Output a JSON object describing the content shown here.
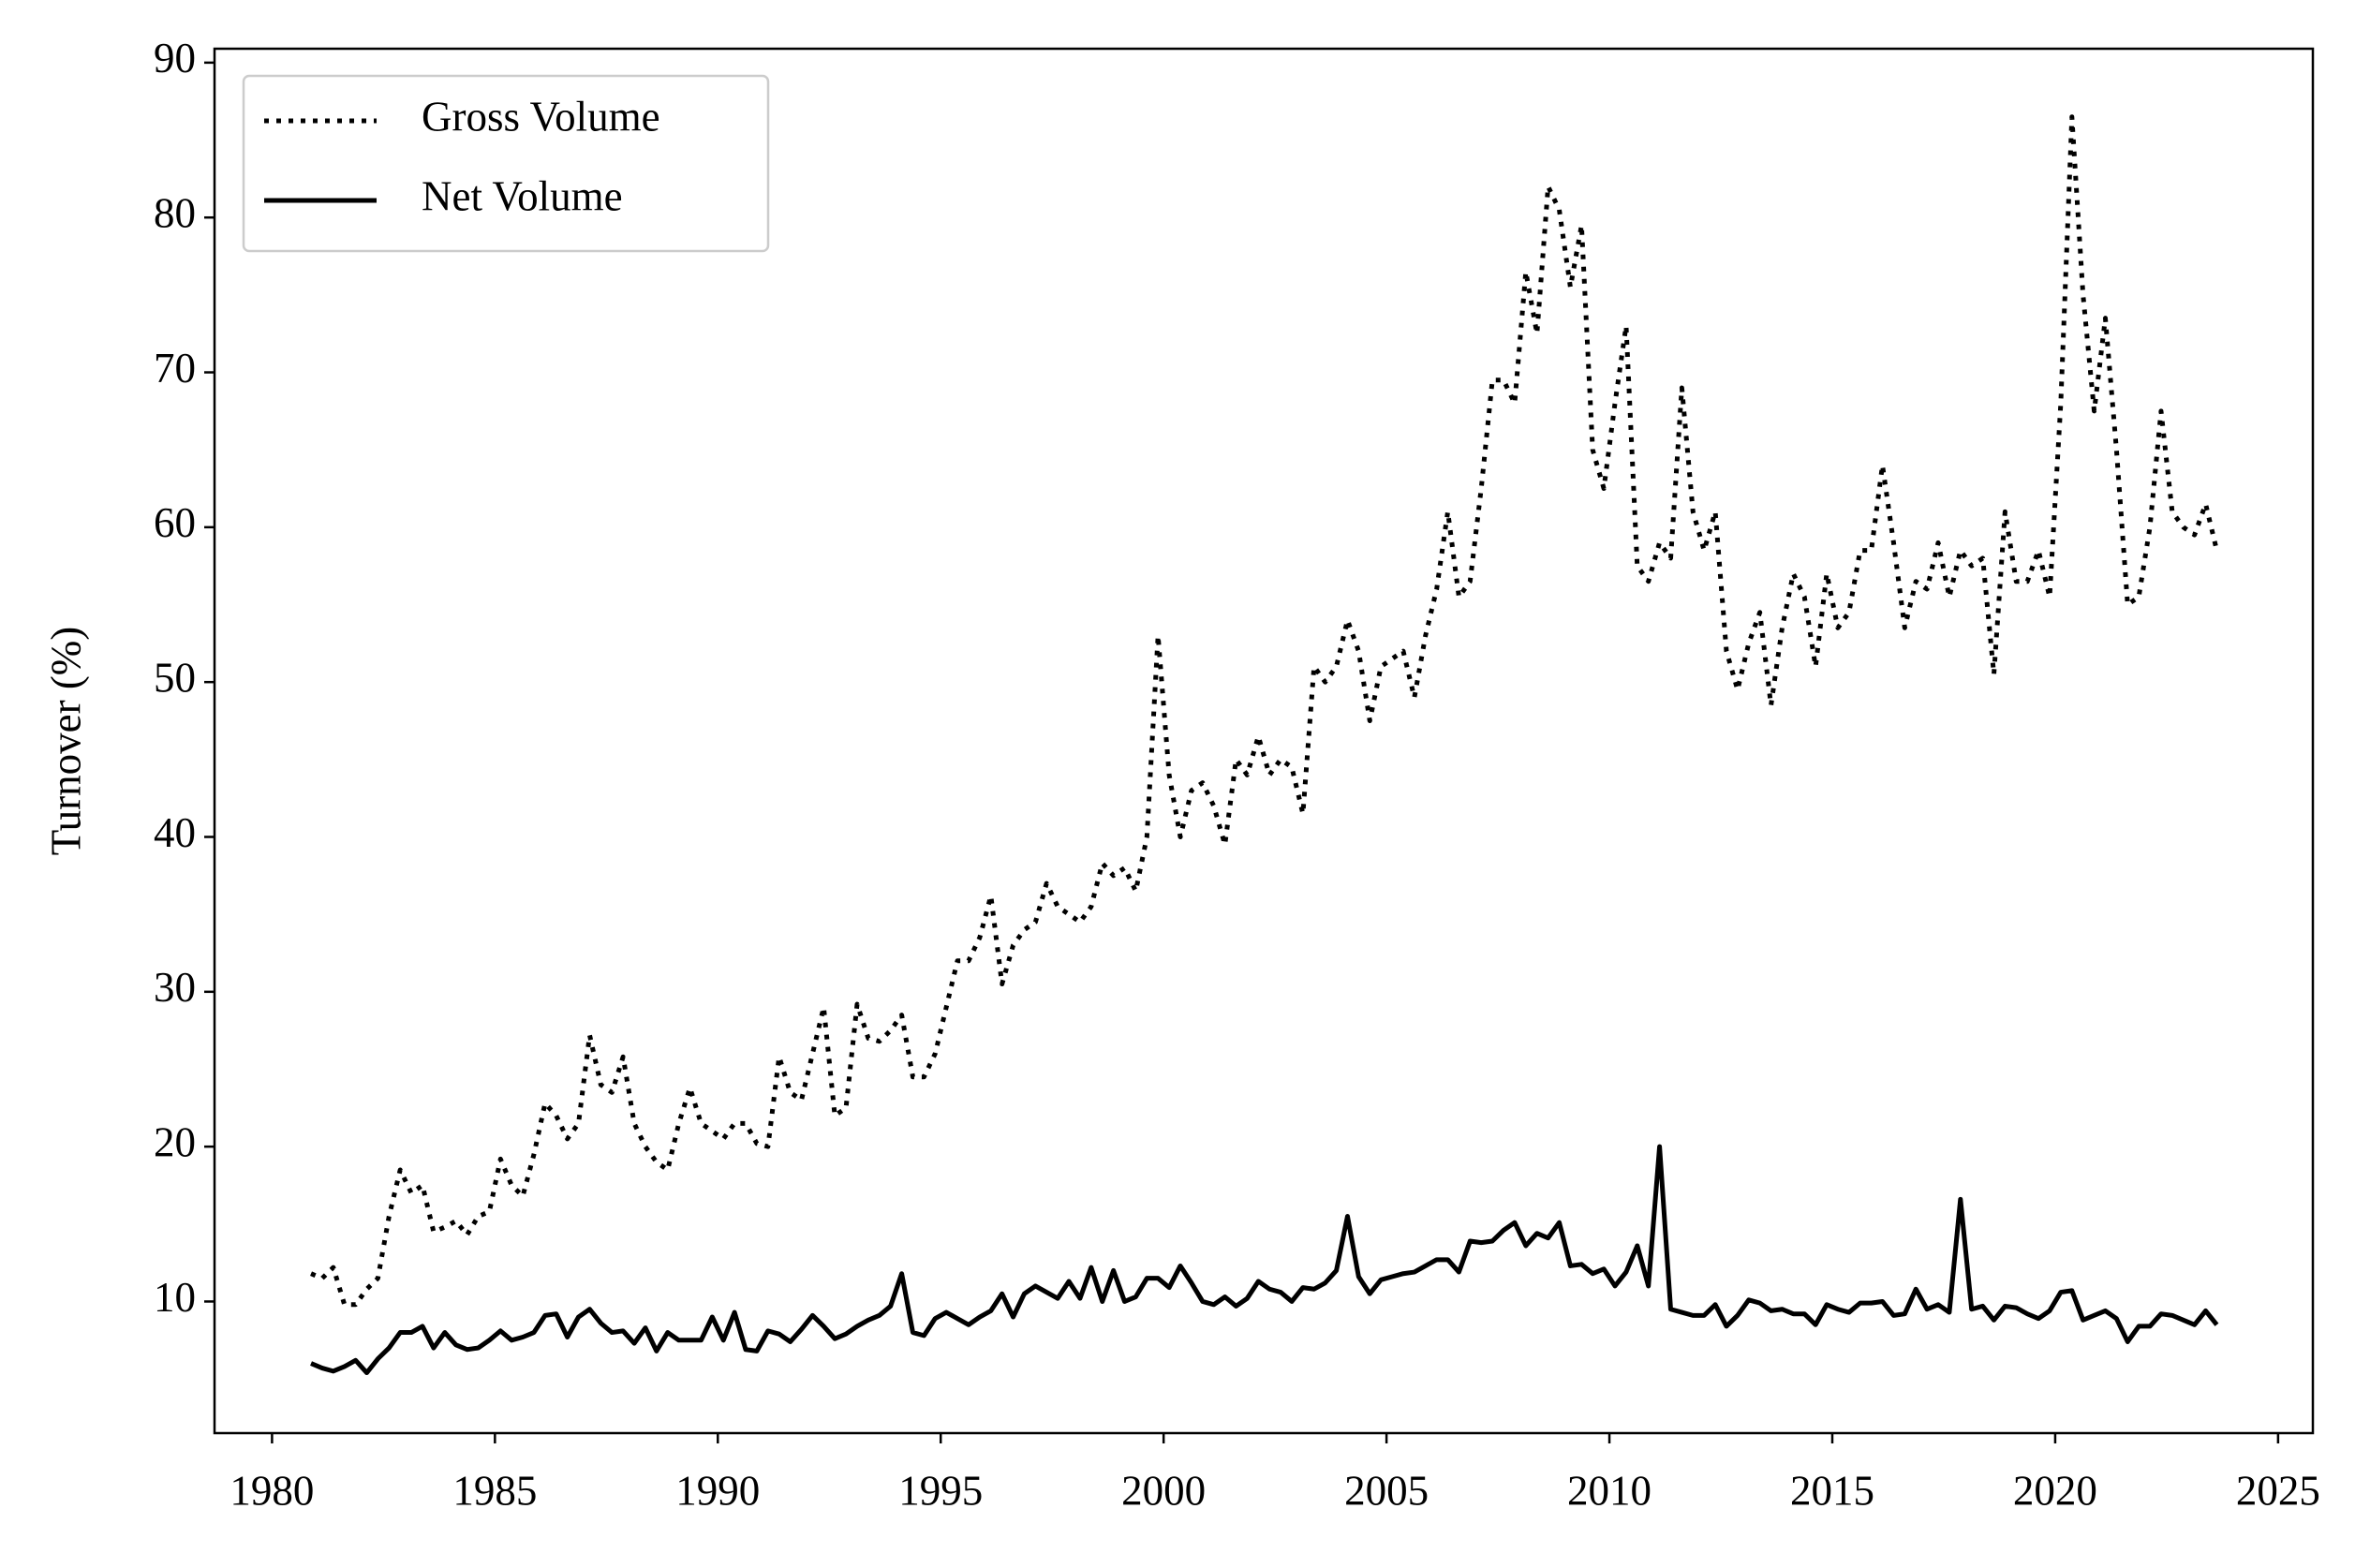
{
  "chart_data": {
    "type": "line",
    "ylabel": "Turnover (%)",
    "xlim": [
      1978.71,
      2025.78
    ],
    "ylim": [
      1.5,
      90.9
    ],
    "xticks": [
      1980,
      1985,
      1990,
      1995,
      2000,
      2005,
      2010,
      2015,
      2020,
      2025
    ],
    "yticks": [
      10,
      20,
      30,
      40,
      50,
      60,
      70,
      80,
      90
    ],
    "legend": "upper left",
    "x": [
      1980.875,
      1981.125,
      1981.375,
      1981.625,
      1981.875,
      1982.125,
      1982.375,
      1982.625,
      1982.875,
      1983.125,
      1983.375,
      1983.625,
      1983.875,
      1984.125,
      1984.375,
      1984.625,
      1984.875,
      1985.125,
      1985.375,
      1985.625,
      1985.875,
      1986.125,
      1986.375,
      1986.625,
      1986.875,
      1987.125,
      1987.375,
      1987.625,
      1987.875,
      1988.125,
      1988.375,
      1988.625,
      1988.875,
      1989.125,
      1989.375,
      1989.625,
      1989.875,
      1990.125,
      1990.375,
      1990.625,
      1990.875,
      1991.125,
      1991.375,
      1991.625,
      1991.875,
      1992.125,
      1992.375,
      1992.625,
      1992.875,
      1993.125,
      1993.375,
      1993.625,
      1993.875,
      1994.125,
      1994.375,
      1994.625,
      1994.875,
      1995.125,
      1995.375,
      1995.625,
      1995.875,
      1996.125,
      1996.375,
      1996.625,
      1996.875,
      1997.125,
      1997.375,
      1997.625,
      1997.875,
      1998.125,
      1998.375,
      1998.625,
      1998.875,
      1999.125,
      1999.375,
      1999.625,
      1999.875,
      2000.125,
      2000.375,
      2000.625,
      2000.875,
      2001.125,
      2001.375,
      2001.625,
      2001.875,
      2002.125,
      2002.375,
      2002.625,
      2002.875,
      2003.125,
      2003.375,
      2003.625,
      2003.875,
      2004.125,
      2004.375,
      2004.625,
      2004.875,
      2005.125,
      2005.375,
      2005.625,
      2005.875,
      2006.125,
      2006.375,
      2006.625,
      2006.875,
      2007.125,
      2007.375,
      2007.625,
      2007.875,
      2008.125,
      2008.375,
      2008.625,
      2008.875,
      2009.125,
      2009.375,
      2009.625,
      2009.875,
      2010.125,
      2010.375,
      2010.625,
      2010.875,
      2011.125,
      2011.375,
      2011.625,
      2011.875,
      2012.125,
      2012.375,
      2012.625,
      2012.875,
      2013.125,
      2013.375,
      2013.625,
      2013.875,
      2014.125,
      2014.375,
      2014.625,
      2014.875,
      2015.125,
      2015.375,
      2015.625,
      2015.875,
      2016.125,
      2016.375,
      2016.625,
      2016.875,
      2017.125,
      2017.375,
      2017.625,
      2017.875,
      2018.125,
      2018.375,
      2018.625,
      2018.875,
      2019.125,
      2019.375,
      2019.625,
      2019.875,
      2020.125,
      2020.375,
      2020.625,
      2020.875,
      2021.125,
      2021.375,
      2021.625,
      2021.875,
      2022.125,
      2022.375,
      2022.625,
      2022.875,
      2023.125,
      2023.375,
      2023.625
    ],
    "series": [
      {
        "name": "Gross Volume",
        "color": "#000000",
        "linestyle": "dotted",
        "values": [
          11.8,
          11.5,
          12.2,
          9.8,
          9.8,
          10.8,
          11.5,
          15.5,
          18.5,
          17,
          17.5,
          14.5,
          14.8,
          15.2,
          14.3,
          15.5,
          15.8,
          19.2,
          17.5,
          16.8,
          19.5,
          22.8,
          22,
          20.5,
          21.5,
          27.2,
          24,
          23.5,
          25.8,
          21.5,
          20,
          19,
          18.5,
          21.5,
          23.8,
          21.5,
          21,
          20.5,
          21.5,
          21.5,
          20.2,
          20,
          25.8,
          23.5,
          23,
          26,
          29,
          22,
          22.5,
          29.2,
          27,
          26.8,
          27.5,
          28.5,
          24.5,
          24.5,
          26,
          29,
          32,
          32,
          33.5,
          36.2,
          30.5,
          33,
          34,
          34.5,
          37,
          35.5,
          35,
          34.5,
          35.5,
          38.3,
          37.5,
          38,
          36.5,
          40,
          53,
          44,
          40,
          43,
          43.5,
          42,
          39.5,
          45,
          44,
          46.5,
          44,
          45,
          44.5,
          41.5,
          51,
          50,
          51,
          54,
          52,
          47.5,
          51,
          51.5,
          52,
          49,
          53,
          56,
          61,
          55.5,
          56.5,
          62.5,
          69.5,
          69.5,
          68,
          76.5,
          72.5,
          82,
          80.5,
          75.5,
          79.5,
          65,
          62.5,
          68,
          73,
          57.5,
          56.5,
          59,
          58,
          69,
          61,
          58.5,
          61,
          52,
          49.5,
          52.5,
          54.5,
          48.5,
          53.5,
          57,
          55.5,
          51,
          57,
          53.5,
          54.5,
          58.5,
          58.5,
          64,
          59,
          53.5,
          56.5,
          56,
          59,
          55.5,
          58.5,
          57.5,
          58,
          50.5,
          61,
          56.5,
          56.5,
          58.5,
          55.5,
          68,
          86.5,
          75,
          67.5,
          73.5,
          65,
          55,
          55.5,
          60,
          67.5,
          61,
          60,
          59.5,
          61.5,
          58.5
        ]
      },
      {
        "name": "Net Volume",
        "color": "#000000",
        "linestyle": "solid",
        "values": [
          6,
          5.7,
          5.5,
          5.8,
          6.2,
          5.4,
          6.3,
          7,
          8,
          8,
          8.4,
          7,
          8,
          7.2,
          6.9,
          7,
          7.5,
          8.1,
          7.5,
          7.7,
          8,
          9.1,
          9.2,
          7.7,
          9,
          9.5,
          8.6,
          8,
          8.1,
          7.3,
          8.3,
          6.8,
          8,
          7.5,
          7.5,
          7.5,
          9,
          7.5,
          9.3,
          6.9,
          6.8,
          8.1,
          7.9,
          7.4,
          8.2,
          9.1,
          8.4,
          7.6,
          7.9,
          8.4,
          8.8,
          9.1,
          9.7,
          11.8,
          8,
          7.8,
          8.9,
          9.3,
          8.9,
          8.5,
          9,
          9.4,
          10.5,
          9,
          10.5,
          11,
          10.6,
          10.2,
          11.3,
          10.2,
          12.2,
          10,
          12,
          10,
          10.3,
          11.5,
          11.5,
          10.9,
          12.3,
          11.2,
          10,
          9.8,
          10.3,
          9.7,
          10.2,
          11.3,
          10.8,
          10.6,
          10,
          10.9,
          10.8,
          11.2,
          12,
          15.5,
          11.6,
          10.5,
          11.4,
          11.6,
          11.8,
          11.9,
          12.3,
          12.7,
          12.7,
          11.9,
          13.9,
          13.8,
          13.9,
          14.6,
          15.1,
          13.6,
          14.4,
          14.1,
          15.1,
          12.3,
          12.4,
          11.8,
          12.1,
          11,
          11.9,
          13.6,
          11,
          20,
          9.5,
          9.3,
          9.1,
          9.1,
          9.8,
          8.4,
          9.1,
          10.1,
          9.9,
          9.4,
          9.5,
          9.2,
          9.2,
          8.5,
          9.8,
          9.5,
          9.3,
          9.9,
          9.9,
          10,
          9.1,
          9.2,
          10.8,
          9.5,
          9.8,
          9.3,
          16.6,
          9.5,
          9.7,
          8.8,
          9.7,
          9.6,
          9.2,
          8.9,
          9.4,
          10.6,
          10.7,
          8.8,
          9.1,
          9.4,
          8.9,
          7.4,
          8.4,
          8.4,
          9.2,
          9.1,
          8.8,
          8.5,
          9.4,
          8.5
        ]
      }
    ]
  }
}
